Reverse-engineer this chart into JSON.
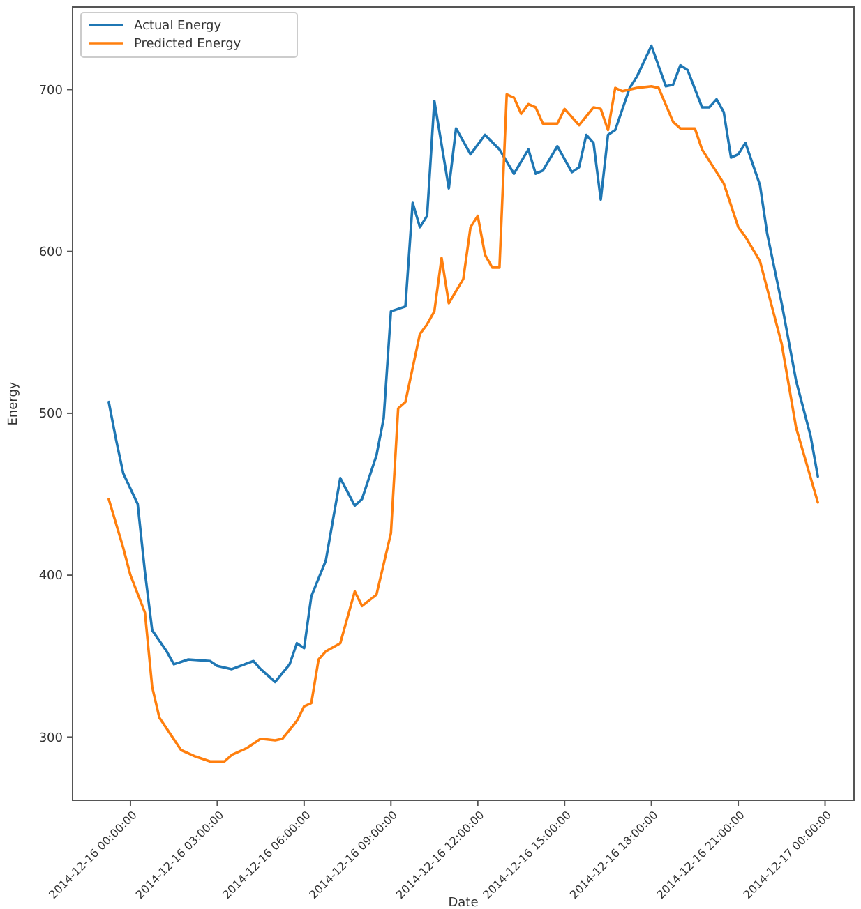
{
  "chart_data": {
    "type": "line",
    "xlabel": "Date",
    "ylabel": "Energy",
    "legend": "top left",
    "grid": false,
    "xlim": [
      "2014-12-15T22:00",
      "2014-12-17T01:00"
    ],
    "ylim": [
      261,
      751
    ],
    "yticks": [
      300,
      400,
      500,
      600,
      700
    ],
    "xticks": [
      {
        "value": "2014-12-16T00:00",
        "label": "2014-12-16 00:00:00"
      },
      {
        "value": "2014-12-16T03:00",
        "label": "2014-12-16 03:00:00"
      },
      {
        "value": "2014-12-16T06:00",
        "label": "2014-12-16 06:00:00"
      },
      {
        "value": "2014-12-16T09:00",
        "label": "2014-12-16 09:00:00"
      },
      {
        "value": "2014-12-16T12:00",
        "label": "2014-12-16 12:00:00"
      },
      {
        "value": "2014-12-16T15:00",
        "label": "2014-12-16 15:00:00"
      },
      {
        "value": "2014-12-16T18:00",
        "label": "2014-12-16 18:00:00"
      },
      {
        "value": "2014-12-16T21:00",
        "label": "2014-12-16 21:00:00"
      },
      {
        "value": "2014-12-17T00:00",
        "label": "2014-12-17 00:00:00"
      }
    ],
    "series": [
      {
        "name": "Actual Energy",
        "color": "#1f77b4",
        "x": [
          "2014-12-15T23:15",
          "2014-12-15T23:30",
          "2014-12-15T23:45",
          "2014-12-16T00:15",
          "2014-12-16T00:30",
          "2014-12-16T00:45",
          "2014-12-16T01:15",
          "2014-12-16T01:30",
          "2014-12-16T02:00",
          "2014-12-16T02:45",
          "2014-12-16T03:00",
          "2014-12-16T03:30",
          "2014-12-16T04:15",
          "2014-12-16T04:30",
          "2014-12-16T05:00",
          "2014-12-16T05:30",
          "2014-12-16T05:45",
          "2014-12-16T06:00",
          "2014-12-16T06:15",
          "2014-12-16T06:45",
          "2014-12-16T07:15",
          "2014-12-16T07:45",
          "2014-12-16T08:00",
          "2014-12-16T08:30",
          "2014-12-16T08:45",
          "2014-12-16T09:00",
          "2014-12-16T09:30",
          "2014-12-16T09:45",
          "2014-12-16T10:00",
          "2014-12-16T10:15",
          "2014-12-16T10:30",
          "2014-12-16T11:00",
          "2014-12-16T11:15",
          "2014-12-16T11:45",
          "2014-12-16T12:15",
          "2014-12-16T12:45",
          "2014-12-16T13:15",
          "2014-12-16T13:45",
          "2014-12-16T14:00",
          "2014-12-16T14:15",
          "2014-12-16T14:45",
          "2014-12-16T15:15",
          "2014-12-16T15:30",
          "2014-12-16T15:45",
          "2014-12-16T16:00",
          "2014-12-16T16:15",
          "2014-12-16T16:30",
          "2014-12-16T16:45",
          "2014-12-16T17:15",
          "2014-12-16T17:30",
          "2014-12-16T18:00",
          "2014-12-16T18:30",
          "2014-12-16T18:45",
          "2014-12-16T19:00",
          "2014-12-16T19:15",
          "2014-12-16T19:45",
          "2014-12-16T20:00",
          "2014-12-16T20:15",
          "2014-12-16T20:30",
          "2014-12-16T20:45",
          "2014-12-16T21:00",
          "2014-12-16T21:15",
          "2014-12-16T21:45",
          "2014-12-16T22:00",
          "2014-12-16T22:30",
          "2014-12-16T23:00",
          "2014-12-16T23:30",
          "2014-12-16T23:45"
        ],
        "values": [
          507,
          484,
          463,
          444,
          402,
          366,
          353,
          345,
          348,
          347,
          344,
          342,
          347,
          342,
          334,
          345,
          358,
          355,
          387,
          409,
          460,
          443,
          447,
          474,
          497,
          563,
          566,
          630,
          615,
          622,
          693,
          639,
          676,
          660,
          672,
          663,
          648,
          663,
          648,
          650,
          665,
          649,
          652,
          672,
          667,
          632,
          672,
          675,
          701,
          708,
          727,
          702,
          703,
          715,
          712,
          689,
          689,
          694,
          686,
          658,
          660,
          667,
          641,
          611,
          568,
          520,
          486,
          461
        ]
      },
      {
        "name": "Predicted Energy",
        "color": "#ff7f0e",
        "x": [
          "2014-12-15T23:15",
          "2014-12-15T23:45",
          "2014-12-16T00:00",
          "2014-12-16T00:30",
          "2014-12-16T00:45",
          "2014-12-16T01:00",
          "2014-12-16T01:45",
          "2014-12-16T02:15",
          "2014-12-16T02:45",
          "2014-12-16T03:15",
          "2014-12-16T03:30",
          "2014-12-16T04:00",
          "2014-12-16T04:30",
          "2014-12-16T05:00",
          "2014-12-16T05:15",
          "2014-12-16T05:45",
          "2014-12-16T06:00",
          "2014-12-16T06:15",
          "2014-12-16T06:30",
          "2014-12-16T06:45",
          "2014-12-16T07:15",
          "2014-12-16T07:45",
          "2014-12-16T08:00",
          "2014-12-16T08:30",
          "2014-12-16T09:00",
          "2014-12-16T09:15",
          "2014-12-16T09:30",
          "2014-12-16T10:00",
          "2014-12-16T10:15",
          "2014-12-16T10:30",
          "2014-12-16T10:45",
          "2014-12-16T11:00",
          "2014-12-16T11:30",
          "2014-12-16T11:45",
          "2014-12-16T12:00",
          "2014-12-16T12:15",
          "2014-12-16T12:30",
          "2014-12-16T12:45",
          "2014-12-16T13:00",
          "2014-12-16T13:15",
          "2014-12-16T13:30",
          "2014-12-16T13:45",
          "2014-12-16T14:00",
          "2014-12-16T14:15",
          "2014-12-16T14:45",
          "2014-12-16T15:00",
          "2014-12-16T15:30",
          "2014-12-16T16:00",
          "2014-12-16T16:15",
          "2014-12-16T16:30",
          "2014-12-16T16:45",
          "2014-12-16T17:00",
          "2014-12-16T17:30",
          "2014-12-16T18:00",
          "2014-12-16T18:15",
          "2014-12-16T18:45",
          "2014-12-16T19:00",
          "2014-12-16T19:30",
          "2014-12-16T19:45",
          "2014-12-16T20:15",
          "2014-12-16T20:30",
          "2014-12-16T21:00",
          "2014-12-16T21:15",
          "2014-12-16T21:45",
          "2014-12-16T22:00",
          "2014-12-16T22:30",
          "2014-12-16T23:00",
          "2014-12-16T23:45"
        ],
        "values": [
          447,
          417,
          400,
          377,
          331,
          312,
          292,
          288,
          285,
          285,
          289,
          293,
          299,
          298,
          299,
          310,
          319,
          321,
          348,
          353,
          358,
          390,
          381,
          388,
          426,
          503,
          507,
          549,
          555,
          563,
          596,
          568,
          583,
          615,
          622,
          598,
          590,
          590,
          697,
          695,
          685,
          691,
          689,
          679,
          679,
          688,
          678,
          689,
          688,
          675,
          701,
          699,
          701,
          702,
          701,
          680,
          676,
          676,
          663,
          649,
          642,
          615,
          609,
          594,
          577,
          543,
          491,
          445
        ]
      }
    ]
  }
}
